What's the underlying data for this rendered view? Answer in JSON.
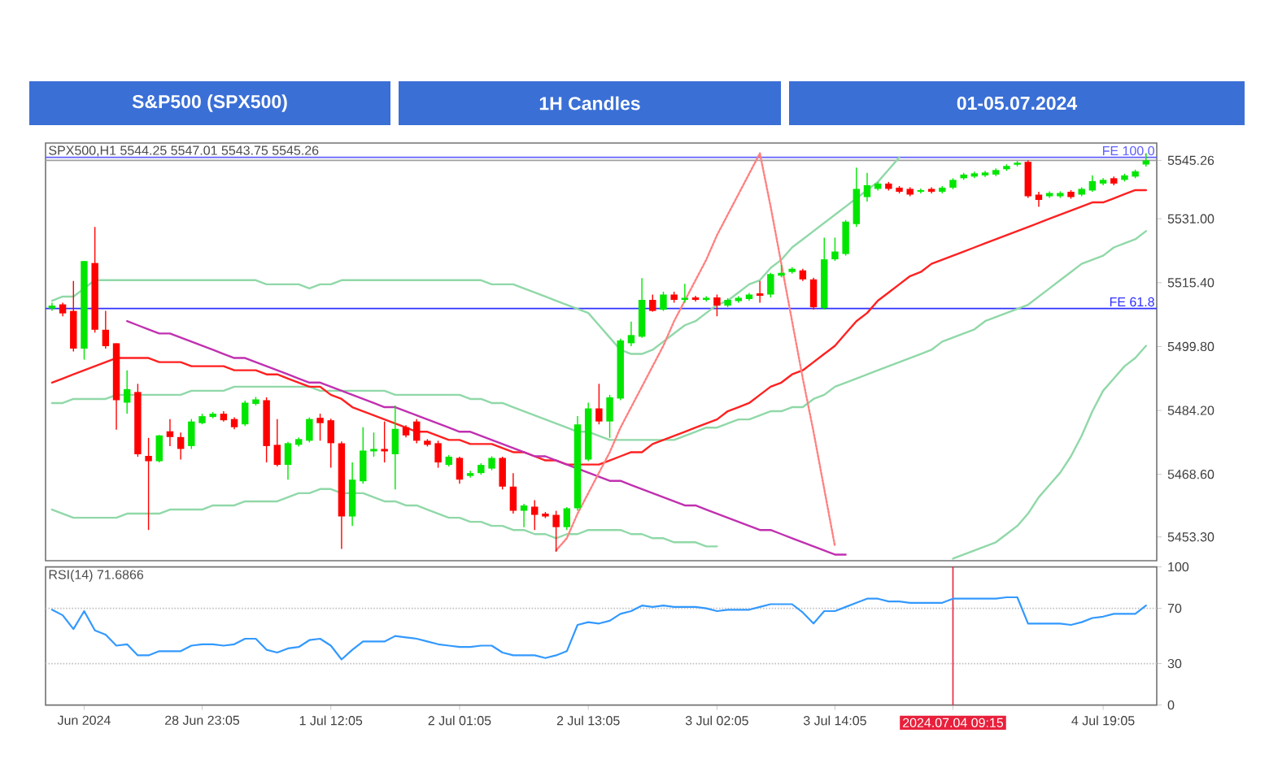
{
  "chart_data": [
    {
      "type": "candlestick",
      "title": "S&P500 (SPX500)",
      "subtitle": "1H Candles",
      "annotations": [
        "01-05.07.2024",
        "SPX500,H1  5544.25 5547.01 5543.75 5545.26"
      ],
      "categories": [
        null,
        null,
        null,
        null,
        null,
        null,
        null,
        null,
        null,
        null,
        null,
        null,
        null,
        null,
        null,
        null,
        null,
        null,
        null,
        null,
        null,
        null,
        null,
        null,
        null,
        null,
        null,
        null,
        null,
        null,
        null,
        null,
        null,
        null,
        null,
        null,
        null,
        null,
        null,
        null,
        null,
        null,
        null,
        null,
        null,
        null,
        null,
        null,
        null,
        null,
        null,
        null,
        null,
        null,
        null,
        null,
        null,
        null,
        null,
        null,
        null,
        null,
        null,
        null,
        null,
        null,
        null,
        null,
        null,
        null,
        null,
        null,
        null,
        null,
        null,
        null,
        null,
        null,
        null,
        null,
        null,
        null,
        null,
        null,
        null,
        null,
        null,
        null,
        null,
        null,
        null,
        null,
        null,
        null,
        null,
        null,
        null,
        null,
        null,
        null,
        null,
        null,
        null
      ],
      "ohlc": [
        [
          5509.1,
          5510.5,
          5508.5,
          5509.8
        ],
        [
          5510.1,
          5510.5,
          5507.2,
          5507.9
        ],
        [
          5508.5,
          5515.8,
          5498.6,
          5499.3
        ],
        [
          5499.3,
          5520.7,
          5496.6,
          5520.7
        ],
        [
          5520.2,
          5529.0,
          5503.2,
          5503.9
        ],
        [
          5503.9,
          5508.5,
          5499.3,
          5499.9
        ],
        [
          5500.6,
          5500.6,
          5479.5,
          5486.7
        ],
        [
          5486.1,
          5494.0,
          5483.4,
          5489.4
        ],
        [
          5488.7,
          5490.7,
          5472.9,
          5473.5
        ],
        [
          5473.1,
          5477.5,
          5455.0,
          5471.8
        ],
        [
          5471.8,
          5478.2,
          5471.5,
          5478.1
        ],
        [
          5479.1,
          5482.1,
          5475.5,
          5477.7
        ],
        [
          5477.7,
          5478.8,
          5472.2,
          5474.8
        ],
        [
          5475.5,
          5482.1,
          5474.8,
          5481.5
        ],
        [
          5481.1,
          5483.4,
          5480.8,
          5482.8
        ],
        [
          5482.6,
          5483.8,
          5482.3,
          5483.4
        ],
        [
          5483.4,
          5484.0,
          5481.5,
          5481.8
        ],
        [
          5482.1,
          5482.5,
          5479.6,
          5480.1
        ],
        [
          5480.8,
          5486.6,
          5480.4,
          5486.1
        ],
        [
          5485.8,
          5487.5,
          5485.4,
          5486.9
        ],
        [
          5486.7,
          5487.4,
          5471.5,
          5475.5
        ],
        [
          5475.8,
          5482.1,
          5470.5,
          5470.9
        ],
        [
          5470.9,
          5476.5,
          5467.3,
          5476.2
        ],
        [
          5475.8,
          5477.6,
          5475.4,
          5477.2
        ],
        [
          5476.8,
          5482.5,
          5476.4,
          5482.1
        ],
        [
          5482.4,
          5483.4,
          5476.8,
          5481.1
        ],
        [
          5481.8,
          5482.2,
          5470.2,
          5476.2
        ],
        [
          5476.2,
          5476.6,
          5450.4,
          5458.3
        ],
        [
          5458.3,
          5471.5,
          5456.0,
          5467.3
        ],
        [
          5466.9,
          5480.1,
          5466.3,
          5474.4
        ],
        [
          5474.2,
          5478.8,
          5472.9,
          5474.8
        ],
        [
          5474.8,
          5481.5,
          5471.5,
          5474.2
        ],
        [
          5473.5,
          5485.4,
          5464.9,
          5479.7
        ],
        [
          5480.1,
          5480.6,
          5477.6,
          5478.1
        ],
        [
          5481.5,
          5482.1,
          5476.2,
          5476.8
        ],
        [
          5476.8,
          5477.2,
          5475.4,
          5475.8
        ],
        [
          5476.2,
          5476.8,
          5470.2,
          5471.5
        ],
        [
          5470.9,
          5473.3,
          5470.5,
          5472.9
        ],
        [
          5472.6,
          5472.9,
          5466.3,
          5467.3
        ],
        [
          5468.2,
          5469.5,
          5467.8,
          5468.9
        ],
        [
          5468.9,
          5471.3,
          5468.5,
          5470.9
        ],
        [
          5470.0,
          5473.0,
          5469.6,
          5472.6
        ],
        [
          5472.6,
          5472.9,
          5464.9,
          5465.6
        ],
        [
          5465.6,
          5468.9,
          5459.0,
          5459.7
        ],
        [
          5459.7,
          5461.4,
          5455.7,
          5461.0
        ],
        [
          5460.7,
          5462.3,
          5455.0,
          5458.7
        ],
        [
          5459.0,
          5459.4,
          5457.9,
          5458.3
        ],
        [
          5458.7,
          5459.7,
          5449.7,
          5455.7
        ],
        [
          5455.7,
          5460.6,
          5455.0,
          5460.3
        ],
        [
          5460.3,
          5482.8,
          5459.7,
          5480.8
        ],
        [
          5472.2,
          5486.1,
          5471.8,
          5484.7
        ],
        [
          5484.7,
          5490.7,
          5480.8,
          5481.5
        ],
        [
          5481.5,
          5488.0,
          5477.5,
          5487.4
        ],
        [
          5487.1,
          5501.7,
          5486.7,
          5501.3
        ],
        [
          5500.6,
          5505.9,
          5499.9,
          5502.6
        ],
        [
          5502.2,
          5516.5,
          5501.9,
          5511.2
        ],
        [
          5511.2,
          5512.5,
          5508.3,
          5508.5
        ],
        [
          5508.8,
          5513.2,
          5508.5,
          5512.5
        ],
        [
          5512.5,
          5513.2,
          5510.5,
          5511.2
        ],
        [
          5511.2,
          5515.1,
          5510.5,
          5511.7
        ],
        [
          5511.8,
          5512.2,
          5510.8,
          5511.2
        ],
        [
          5511.2,
          5512.1,
          5510.8,
          5511.7
        ],
        [
          5511.8,
          5512.5,
          5507.2,
          5509.8
        ],
        [
          5509.8,
          5511.6,
          5509.4,
          5511.2
        ],
        [
          5510.9,
          5512.1,
          5510.5,
          5511.7
        ],
        [
          5511.4,
          5512.9,
          5511.0,
          5512.5
        ],
        [
          5512.8,
          5515.8,
          5510.5,
          5512.2
        ],
        [
          5512.5,
          5517.8,
          5511.8,
          5517.5
        ],
        [
          5517.1,
          5519.8,
          5516.7,
          5517.8
        ],
        [
          5518.0,
          5519.2,
          5517.6,
          5518.8
        ],
        [
          5518.4,
          5518.8,
          5515.8,
          5516.2
        ],
        [
          5516.2,
          5516.6,
          5508.8,
          5509.4
        ],
        [
          5509.2,
          5526.4,
          5508.8,
          5521.1
        ],
        [
          5521.1,
          5526.4,
          5520.7,
          5523.0
        ],
        [
          5522.4,
          5530.7,
          5522.0,
          5530.3
        ],
        [
          5529.7,
          5543.5,
          5529.0,
          5538.3
        ],
        [
          5536.3,
          5542.2,
          5535.2,
          5539.2
        ],
        [
          5538.3,
          5540.0,
          5537.9,
          5539.6
        ],
        [
          5539.6,
          5540.0,
          5537.9,
          5538.3
        ],
        [
          5538.6,
          5539.0,
          5537.2,
          5537.6
        ],
        [
          5538.3,
          5538.7,
          5536.5,
          5536.9
        ],
        [
          5537.6,
          5538.4,
          5537.2,
          5538.0
        ],
        [
          5538.3,
          5538.7,
          5537.2,
          5537.6
        ],
        [
          5537.6,
          5539.0,
          5537.2,
          5538.6
        ],
        [
          5538.6,
          5540.9,
          5538.2,
          5540.5
        ],
        [
          5540.9,
          5542.2,
          5540.5,
          5541.8
        ],
        [
          5541.3,
          5542.5,
          5540.9,
          5542.1
        ],
        [
          5541.6,
          5542.7,
          5541.2,
          5542.3
        ],
        [
          5541.8,
          5543.3,
          5541.4,
          5542.9
        ],
        [
          5543.1,
          5544.3,
          5542.7,
          5543.9
        ],
        [
          5544.2,
          5545.1,
          5543.8,
          5544.7
        ],
        [
          5544.9,
          5545.3,
          5536.1,
          5536.5
        ],
        [
          5536.9,
          5537.6,
          5533.9,
          5535.6
        ],
        [
          5536.5,
          5537.7,
          5536.1,
          5537.3
        ],
        [
          5536.5,
          5537.7,
          5536.1,
          5537.3
        ],
        [
          5537.6,
          5538.0,
          5535.9,
          5536.3
        ],
        [
          5536.9,
          5538.7,
          5536.5,
          5538.3
        ],
        [
          5537.9,
          5541.6,
          5537.6,
          5540.2
        ],
        [
          5539.6,
          5540.9,
          5539.2,
          5540.5
        ],
        [
          5540.9,
          5541.3,
          5539.2,
          5539.6
        ],
        [
          5540.5,
          5542.0,
          5540.1,
          5541.6
        ],
        [
          5541.3,
          5543.0,
          5540.9,
          5542.6
        ],
        [
          5544.25,
          5547.01,
          5543.75,
          5545.26
        ]
      ],
      "colors": [
        "#00e600",
        "#ff0000",
        "#ff0000",
        "#00e600",
        "#ff0000",
        "#ff0000",
        "#ff0000",
        "#00e600",
        "#ff0000",
        "#ff0000",
        "#00e600",
        "#ff0000",
        "#ff0000",
        "#00e600",
        "#00e600",
        "#00e600",
        "#ff0000",
        "#ff0000",
        "#00e600",
        "#00e600",
        "#ff0000",
        "#ff0000",
        "#00e600",
        "#00e600",
        "#00e600",
        "#ff0000",
        "#ff0000",
        "#ff0000",
        "#00e600",
        "#00e600",
        "#00e600",
        "#ff0000",
        "#00e600",
        "#ff0000",
        "#ff0000",
        "#ff0000",
        "#ff0000",
        "#00e600",
        "#ff0000",
        "#00e600",
        "#00e600",
        "#00e600",
        "#ff0000",
        "#ff0000",
        "#00e600",
        "#ff0000",
        "#ff0000",
        "#ff0000",
        "#00e600",
        "#00e600",
        "#00e600",
        "#ff0000",
        "#00e600",
        "#00e600",
        "#00e600",
        "#00e600",
        "#ff0000",
        "#00e600",
        "#ff0000",
        "#00e600",
        "#ff0000",
        "#00e600",
        "#ff0000",
        "#00e600",
        "#00e600",
        "#00e600",
        "#ff0000",
        "#00e600",
        "#00e600",
        "#00e600",
        "#ff0000",
        "#ff0000",
        "#00e600",
        "#00e600",
        "#00e600",
        "#00e600",
        "#00e600",
        "#00e600",
        "#ff0000",
        "#ff0000",
        "#ff0000",
        "#00e600",
        "#ff0000",
        "#00e600",
        "#00e600",
        "#00e600",
        "#00e600",
        "#00e600",
        "#00e600",
        "#00e600",
        "#00e600",
        "#ff0000",
        "#ff0000",
        "#00e600",
        "#00e600",
        "#ff0000",
        "#00e600",
        "#00e600",
        "#00e600",
        "#ff0000",
        "#00e600",
        "#00e600",
        "#00e600"
      ],
      "series": [
        {
          "type": "line",
          "color": "#90d8a8",
          "values": [
            5511,
            5512,
            5512,
            5514,
            5516,
            5516,
            5516,
            5516,
            5516,
            5516,
            5516,
            5516,
            5516,
            5516,
            5516,
            5516,
            5516,
            5516,
            5516,
            5516,
            5515,
            5515,
            5515,
            5515,
            5514,
            5515,
            5515,
            5516,
            5516,
            5516,
            5516,
            5516,
            5516,
            5516,
            5516,
            5516,
            5516,
            5516,
            5516,
            5516,
            5516,
            5515,
            5515,
            5515,
            5514,
            5513,
            5512,
            5511,
            5510,
            5509,
            5508,
            5505,
            5502,
            5499,
            5498,
            5498,
            5499,
            5501,
            5503,
            5505,
            5506,
            5508,
            5510,
            5511,
            5513,
            5515,
            5516,
            5519,
            5521,
            5524,
            5526,
            5528,
            5530,
            5532,
            5534,
            5536,
            5538,
            5540,
            5543,
            5546,
            null,
            null,
            null,
            null,
            null,
            null,
            null,
            null,
            null,
            null,
            null,
            null,
            null,
            null,
            null,
            null,
            null,
            null,
            null,
            null,
            null,
            null,
            null
          ]
        },
        {
          "type": "line",
          "color": "#90d8a8",
          "values": [
            5486,
            5486,
            5487,
            5487,
            5487,
            5487,
            5488,
            5488,
            5488,
            5488,
            5488,
            5488,
            5488,
            5489,
            5489,
            5489,
            5489,
            5490,
            5490,
            5490,
            5490,
            5490,
            5490,
            5490,
            5490,
            5489,
            5489,
            5489,
            5489,
            5489,
            5489,
            5489,
            5488,
            5488,
            5488,
            5488,
            5488,
            5488,
            5488,
            5487,
            5487,
            5486,
            5486,
            5485,
            5484,
            5483,
            5482,
            5481,
            5480,
            5479,
            5479,
            5478,
            5477,
            5477,
            5477,
            5477,
            5477,
            5477,
            5477,
            5478,
            5479,
            5480,
            5480,
            5481,
            5482,
            5482,
            5483,
            5484,
            5484,
            5485,
            5485,
            5487,
            5488,
            5490,
            5491,
            5492,
            5493,
            5494,
            5495,
            5496,
            5497,
            5498,
            5499,
            5501,
            5502,
            5503,
            5504,
            5506,
            5507,
            5508,
            5509,
            5510,
            5512,
            5514,
            5516,
            5518,
            5520,
            5521,
            5522,
            5524,
            5525,
            5526,
            5528
          ]
        },
        {
          "type": "line",
          "color": "#90d8a8",
          "values": [
            5460,
            5459,
            5458,
            5458,
            5458,
            5458,
            5458,
            5459,
            5459,
            5459,
            5459,
            5460,
            5460,
            5460,
            5460,
            5461,
            5461,
            5461,
            5462,
            5462,
            5462,
            5462,
            5463,
            5464,
            5464,
            5465,
            5465,
            5464,
            5464,
            5464,
            5463,
            5462,
            5462,
            5461,
            5461,
            5460,
            5459,
            5458,
            5458,
            5457,
            5457,
            5456,
            5456,
            5455,
            5455,
            5454,
            5454,
            5453,
            5454,
            5454,
            5455,
            5455,
            5455,
            5455,
            5454,
            5454,
            5453,
            5453,
            5452,
            5452,
            5452,
            5451,
            5451,
            null,
            null,
            null,
            null,
            null,
            null,
            null,
            null,
            null,
            null,
            null,
            null,
            null,
            null,
            null,
            null,
            null,
            null,
            null,
            null,
            null,
            5448,
            5449,
            5450,
            5451,
            5452,
            5454,
            5456,
            5459,
            5463,
            5466,
            5469,
            5473,
            5478,
            5484,
            5489,
            5492,
            5495,
            5497,
            5500
          ]
        },
        {
          "type": "line",
          "color": "#ff2020",
          "values": [
            5491,
            5492,
            5493,
            5494,
            5495,
            5496,
            5497,
            5497,
            5497,
            5497,
            5496,
            5496,
            5496,
            5495,
            5495,
            5495,
            5495,
            5494,
            5494,
            5494,
            5493,
            5493,
            5492,
            5491,
            5490,
            5490,
            5488,
            5487,
            5485,
            5484,
            5483,
            5482,
            5481,
            5480,
            5479,
            5479,
            5478,
            5477,
            5477,
            5476,
            5476,
            5476,
            5475,
            5474,
            5474,
            5473,
            5472,
            5472,
            5471,
            5471,
            5471,
            5471,
            5472,
            5473,
            5474,
            5474,
            5476,
            5477,
            5478,
            5479,
            5480,
            5481,
            5482,
            5484,
            5485,
            5486,
            5488,
            5490,
            5491,
            5493,
            5494,
            5496,
            5498,
            5500,
            5503,
            5506,
            5508,
            5511,
            5513,
            5515,
            5517,
            5518,
            5520,
            5521,
            5522,
            5523,
            5524,
            5525,
            5526,
            5527,
            5528,
            5529,
            5530,
            5531,
            5532,
            5533,
            5534,
            5535,
            5535,
            5536,
            5537,
            5538,
            5538
          ]
        },
        {
          "type": "line",
          "color": "#c030b0",
          "values": [
            null,
            null,
            null,
            null,
            null,
            null,
            null,
            5506,
            5505,
            5504,
            5503,
            5503,
            5502,
            5501,
            5500,
            5499,
            5498,
            5497,
            5497,
            5496,
            5495,
            5494,
            5493,
            5492,
            5491,
            5491,
            5490,
            5489,
            5488,
            5487,
            5486,
            5485,
            5485,
            5484,
            5483,
            5482,
            5481,
            5480,
            5479,
            5479,
            5478,
            5477,
            5476,
            5475,
            5474,
            5473,
            5473,
            5472,
            5471,
            5470,
            5469,
            5468,
            5467,
            5467,
            5466,
            5465,
            5464,
            5463,
            5462,
            5461,
            5461,
            5460,
            5459,
            5458,
            5457,
            5456,
            5455,
            5455,
            5454,
            5453,
            5452,
            5451,
            5450,
            5449,
            5449,
            null,
            null,
            null,
            null,
            null,
            null,
            null,
            null,
            null,
            null,
            null,
            null,
            null,
            null,
            null,
            null,
            null,
            null,
            null,
            null,
            null,
            null,
            null,
            null,
            null,
            null,
            null,
            null
          ]
        },
        {
          "type": "line",
          "color": "#ff8080",
          "line_style": "dotted",
          "values": [
            null,
            null,
            null,
            null,
            null,
            null,
            null,
            null,
            null,
            null,
            null,
            null,
            null,
            null,
            null,
            null,
            null,
            null,
            null,
            null,
            null,
            null,
            null,
            null,
            null,
            null,
            null,
            null,
            null,
            null,
            null,
            null,
            null,
            null,
            null,
            null,
            null,
            null,
            null,
            null,
            null,
            null,
            null,
            null,
            null,
            null,
            null,
            5450,
            5453,
            5459,
            5464,
            5469,
            5474,
            5480,
            5485,
            5490,
            5495,
            5500,
            5506,
            5511,
            5516,
            5521,
            5527,
            5532,
            5537,
            5542,
            5547,
            5534,
            5520,
            5506,
            5492,
            5479,
            5465,
            5451,
            null,
            null,
            null,
            null,
            null,
            null,
            null,
            null,
            null,
            null,
            null,
            null,
            null,
            null,
            null,
            null,
            null,
            null,
            null,
            null,
            null,
            null,
            null,
            null,
            null,
            null,
            null,
            null,
            null
          ]
        }
      ],
      "ref_lines": [
        {
          "axis": "y",
          "value": 5545.26,
          "color": "#a0a0a0"
        },
        {
          "axis": "y",
          "value": 5546.0,
          "label": "FE 100.0",
          "color": "#6060ff"
        },
        {
          "axis": "y",
          "value": 5509.1,
          "label": "FE 61.8",
          "color": "#3030ff"
        }
      ],
      "ylim": [
        5447.5,
        5549.5
      ],
      "yticks": [
        {
          "value": 5453.3,
          "label": "5453.30"
        },
        {
          "value": 5468.6,
          "label": "5468.60"
        },
        {
          "value": 5484.2,
          "label": "5484.20"
        },
        {
          "value": 5499.8,
          "label": "5499.80"
        },
        {
          "value": 5515.4,
          "label": "5515.40"
        },
        {
          "value": 5531,
          "label": "5531.00"
        },
        5545.26
      ],
      "tick_labels": "y"
    },
    {
      "type": "line",
      "color": "#3399ff",
      "annotations": [
        "RSI(14) 71.6866"
      ],
      "categories": [
        null,
        null,
        null,
        "Jun 2024",
        null,
        null,
        null,
        null,
        null,
        null,
        null,
        null,
        null,
        null,
        "28 Jun 23:05",
        null,
        null,
        null,
        null,
        null,
        null,
        null,
        null,
        null,
        null,
        null,
        "1 Jul 12:05",
        null,
        null,
        null,
        null,
        null,
        null,
        null,
        null,
        null,
        null,
        null,
        "2 Jul 01:05",
        null,
        null,
        null,
        null,
        null,
        null,
        null,
        null,
        null,
        null,
        null,
        "2 Jul 13:05",
        null,
        null,
        null,
        null,
        null,
        null,
        null,
        null,
        null,
        null,
        null,
        "3 Jul 02:05",
        null,
        null,
        null,
        null,
        null,
        null,
        null,
        null,
        null,
        null,
        "3 Jul 14:05",
        null,
        null,
        null,
        null,
        null,
        null,
        null,
        null,
        null,
        null,
        "2024.07.04 09:15",
        null,
        null,
        null,
        null,
        null,
        null,
        null,
        null,
        null,
        null,
        null,
        null,
        null,
        "4 Jul 19:05",
        null,
        null,
        null,
        null
      ],
      "values": [
        69,
        65,
        55,
        68,
        54,
        51,
        43,
        44,
        36,
        36,
        39,
        39,
        39,
        43,
        44,
        44,
        43,
        44,
        48,
        48,
        40,
        38,
        41,
        42,
        47,
        48,
        43,
        33,
        40,
        46,
        46,
        46,
        50,
        49,
        48,
        46,
        44,
        43,
        42,
        42,
        43,
        43,
        38,
        36,
        36,
        36,
        34,
        36,
        39,
        58,
        60,
        59,
        61,
        66,
        68,
        72,
        71,
        72,
        71,
        71,
        71,
        70,
        68,
        69,
        69,
        69,
        71,
        73,
        73,
        73,
        67,
        59,
        68,
        68,
        71,
        74,
        77,
        77,
        75,
        75,
        74,
        74,
        74,
        74,
        77,
        77,
        77,
        77,
        77,
        78,
        78,
        59,
        59,
        59,
        59,
        58,
        60,
        63,
        64,
        66,
        66,
        66,
        72
      ],
      "ref_lines": [
        {
          "axis": "y",
          "value": 70,
          "color": "#c0c0c0",
          "line_style": "dotted"
        },
        {
          "axis": "y",
          "value": 30,
          "color": "#c0c0c0",
          "line_style": "dotted"
        },
        {
          "axis": "x",
          "value": "2024.07.04 09:15",
          "color": "#e8203c"
        }
      ],
      "ylim": [
        0,
        100
      ],
      "yticks": [
        0,
        30,
        70,
        100
      ]
    }
  ]
}
